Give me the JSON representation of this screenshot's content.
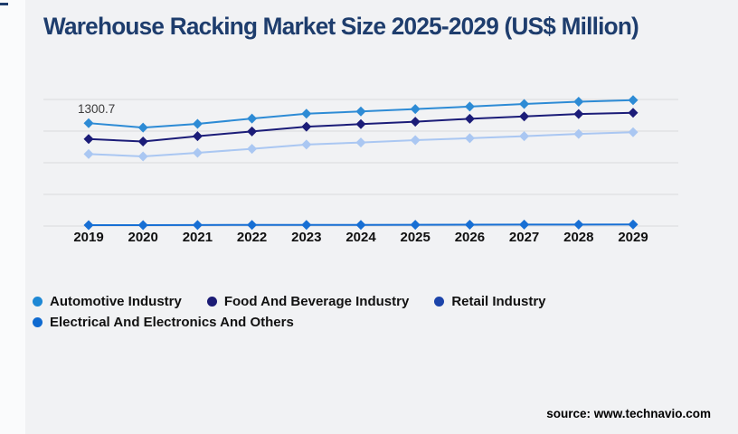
{
  "page": {
    "title": "Warehouse Racking Market Size 2025-2029 (US$ Million)",
    "title_color": "#1e3d6d",
    "background": "#f1f2f4",
    "source": "source: www.technavio.com"
  },
  "chart_data": {
    "type": "line",
    "title": "Warehouse Racking Market Size 2025-2029 (US$ Million)",
    "categories": [
      "2019",
      "2020",
      "2021",
      "2022",
      "2023",
      "2024",
      "2025",
      "2026",
      "2027",
      "2028",
      "2029"
    ],
    "series": [
      {
        "name": "Automotive Industry",
        "line_color": "#2d8bd5",
        "legend_color": "#1e88d5",
        "values": [
          1300.7,
          1245,
          1292,
          1358,
          1420,
          1448,
          1478,
          1510,
          1543,
          1572,
          1591
        ]
      },
      {
        "name": "Food And Beverage Industry",
        "line_color": "#1b1c78",
        "legend_color": "#1b1b75",
        "values": [
          1100,
          1068,
          1136,
          1196,
          1256,
          1288,
          1318,
          1356,
          1386,
          1416,
          1432
        ]
      },
      {
        "name": "Retail Industry",
        "line_color": "#aac7f2",
        "legend_color": "#1c44aa",
        "values": [
          910,
          880,
          926,
          976,
          1030,
          1056,
          1086,
          1110,
          1136,
          1164,
          1186
        ]
      },
      {
        "name": "Electrical And Electronics And Others",
        "line_color": "#176fd4",
        "legend_color": "#0f6ad0",
        "values": [
          12,
          12,
          13,
          14,
          15,
          15,
          16,
          17,
          18,
          19,
          20
        ]
      }
    ],
    "point_label": {
      "text": "1300.7",
      "series": "Automotive Industry",
      "category": "2019"
    },
    "xlabel": "",
    "ylabel": "",
    "ylim": [
      0,
      1600
    ],
    "gridline_step": 400,
    "grid": true,
    "marker": "diamond",
    "legend_position": "bottom-left",
    "gridline_color": "#d9dadc",
    "tick_label_color": "#101010",
    "point_label_color": "#3b3b3b"
  }
}
